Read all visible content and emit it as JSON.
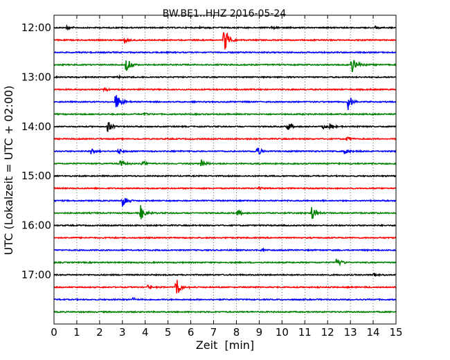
{
  "chart_data": {
    "type": "line",
    "title": "BW.BE1..HHZ 2016-05-24",
    "xlabel": "Zeit  [min]",
    "ylabel": "UTC (Lokalzeit = UTC + 02:00)",
    "xlim": [
      0,
      15
    ],
    "x_ticks": [
      "0",
      "1",
      "2",
      "3",
      "4",
      "5",
      "6",
      "7",
      "8",
      "9",
      "10",
      "11",
      "12",
      "13",
      "14",
      "15"
    ],
    "y_tick_labels": [
      "12:00",
      "13:00",
      "14:00",
      "15:00",
      "16:00",
      "17:00"
    ],
    "grid": "vertical dotted at each minute",
    "trace_colors": [
      "#000000",
      "#ff0000",
      "#0000ff",
      "#008000"
    ],
    "trace_interval_min": 15,
    "trace_start_utc": "12:00",
    "trace_count": 24,
    "events": [
      {
        "trace": 0,
        "minute": 0.55,
        "amp": 0.3
      },
      {
        "trace": 0,
        "minute": 6.4,
        "amp": 0.25
      },
      {
        "trace": 0,
        "minute": 9.55,
        "amp": 0.3
      },
      {
        "trace": 0,
        "minute": 14.1,
        "amp": 0.3
      },
      {
        "trace": 1,
        "minute": 3.1,
        "amp": 0.5
      },
      {
        "trace": 1,
        "minute": 7.45,
        "amp": 2.0
      },
      {
        "trace": 3,
        "minute": 3.15,
        "amp": 1.2
      },
      {
        "trace": 3,
        "minute": 13.05,
        "amp": 1.3
      },
      {
        "trace": 4,
        "minute": 2.75,
        "amp": 0.3
      },
      {
        "trace": 5,
        "minute": 2.2,
        "amp": 0.3
      },
      {
        "trace": 6,
        "minute": 2.7,
        "amp": 1.5
      },
      {
        "trace": 6,
        "minute": 12.9,
        "amp": 1.3
      },
      {
        "trace": 7,
        "minute": 3.95,
        "amp": 0.3
      },
      {
        "trace": 8,
        "minute": 2.35,
        "amp": 0.9
      },
      {
        "trace": 8,
        "minute": 10.25,
        "amp": 0.6
      },
      {
        "trace": 8,
        "minute": 11.8,
        "amp": 0.4
      },
      {
        "trace": 8,
        "minute": 12.1,
        "amp": 0.5
      },
      {
        "trace": 9,
        "minute": 12.85,
        "amp": 0.4
      },
      {
        "trace": 10,
        "minute": 1.6,
        "amp": 0.6
      },
      {
        "trace": 10,
        "minute": 2.8,
        "amp": 0.6
      },
      {
        "trace": 10,
        "minute": 8.9,
        "amp": 0.9
      },
      {
        "trace": 10,
        "minute": 12.7,
        "amp": 0.5
      },
      {
        "trace": 11,
        "minute": 2.9,
        "amp": 0.6
      },
      {
        "trace": 11,
        "minute": 3.85,
        "amp": 0.6
      },
      {
        "trace": 11,
        "minute": 6.45,
        "amp": 0.6
      },
      {
        "trace": 13,
        "minute": 9.0,
        "amp": 0.3
      },
      {
        "trace": 14,
        "minute": 3.0,
        "amp": 0.9
      },
      {
        "trace": 15,
        "minute": 3.8,
        "amp": 1.1
      },
      {
        "trace": 15,
        "minute": 8.05,
        "amp": 0.5
      },
      {
        "trace": 15,
        "minute": 11.3,
        "amp": 1.2
      },
      {
        "trace": 18,
        "minute": 9.1,
        "amp": 0.3
      },
      {
        "trace": 19,
        "minute": 12.4,
        "amp": 1.0
      },
      {
        "trace": 20,
        "minute": 14.0,
        "amp": 0.3
      },
      {
        "trace": 21,
        "minute": 4.1,
        "amp": 0.3
      },
      {
        "trace": 21,
        "minute": 5.35,
        "amp": 1.6
      },
      {
        "trace": 22,
        "minute": 3.45,
        "amp": 0.3
      }
    ]
  }
}
